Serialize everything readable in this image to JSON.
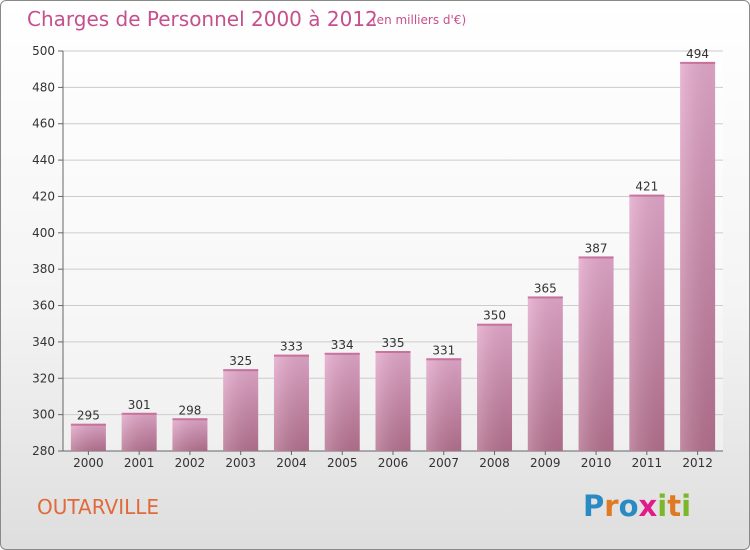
{
  "header": {
    "title": "Charges de Personnel 2000 à 2012",
    "subtitle": "(en milliers d'€)"
  },
  "footer": {
    "commune": "OUTARVILLE",
    "logo": "Proxiti"
  },
  "colors": {
    "title": "#c64f8d",
    "commune": "#e06a3a",
    "bar_top": "#e4a9cc",
    "bar_bottom": "#b5718f",
    "grid": "#cccccc",
    "logo_letters": [
      "#2a8ac4",
      "#e07a22",
      "#2a8ac4",
      "#e21a8a",
      "#7ab82a",
      "#e07a22",
      "#7ab82a"
    ]
  },
  "chart_data": {
    "type": "bar",
    "title": "Charges de Personnel 2000 à 2012",
    "subtitle": "(en milliers d'€)",
    "categories": [
      "2000",
      "2001",
      "2002",
      "2003",
      "2004",
      "2005",
      "2006",
      "2007",
      "2008",
      "2009",
      "2010",
      "2011",
      "2012"
    ],
    "values": [
      295,
      301,
      298,
      325,
      333,
      334,
      335,
      331,
      350,
      365,
      387,
      421,
      494
    ],
    "ylim": [
      280,
      500
    ],
    "yticks": [
      280,
      300,
      320,
      340,
      360,
      380,
      400,
      420,
      440,
      460,
      480,
      500
    ],
    "grid": true
  }
}
